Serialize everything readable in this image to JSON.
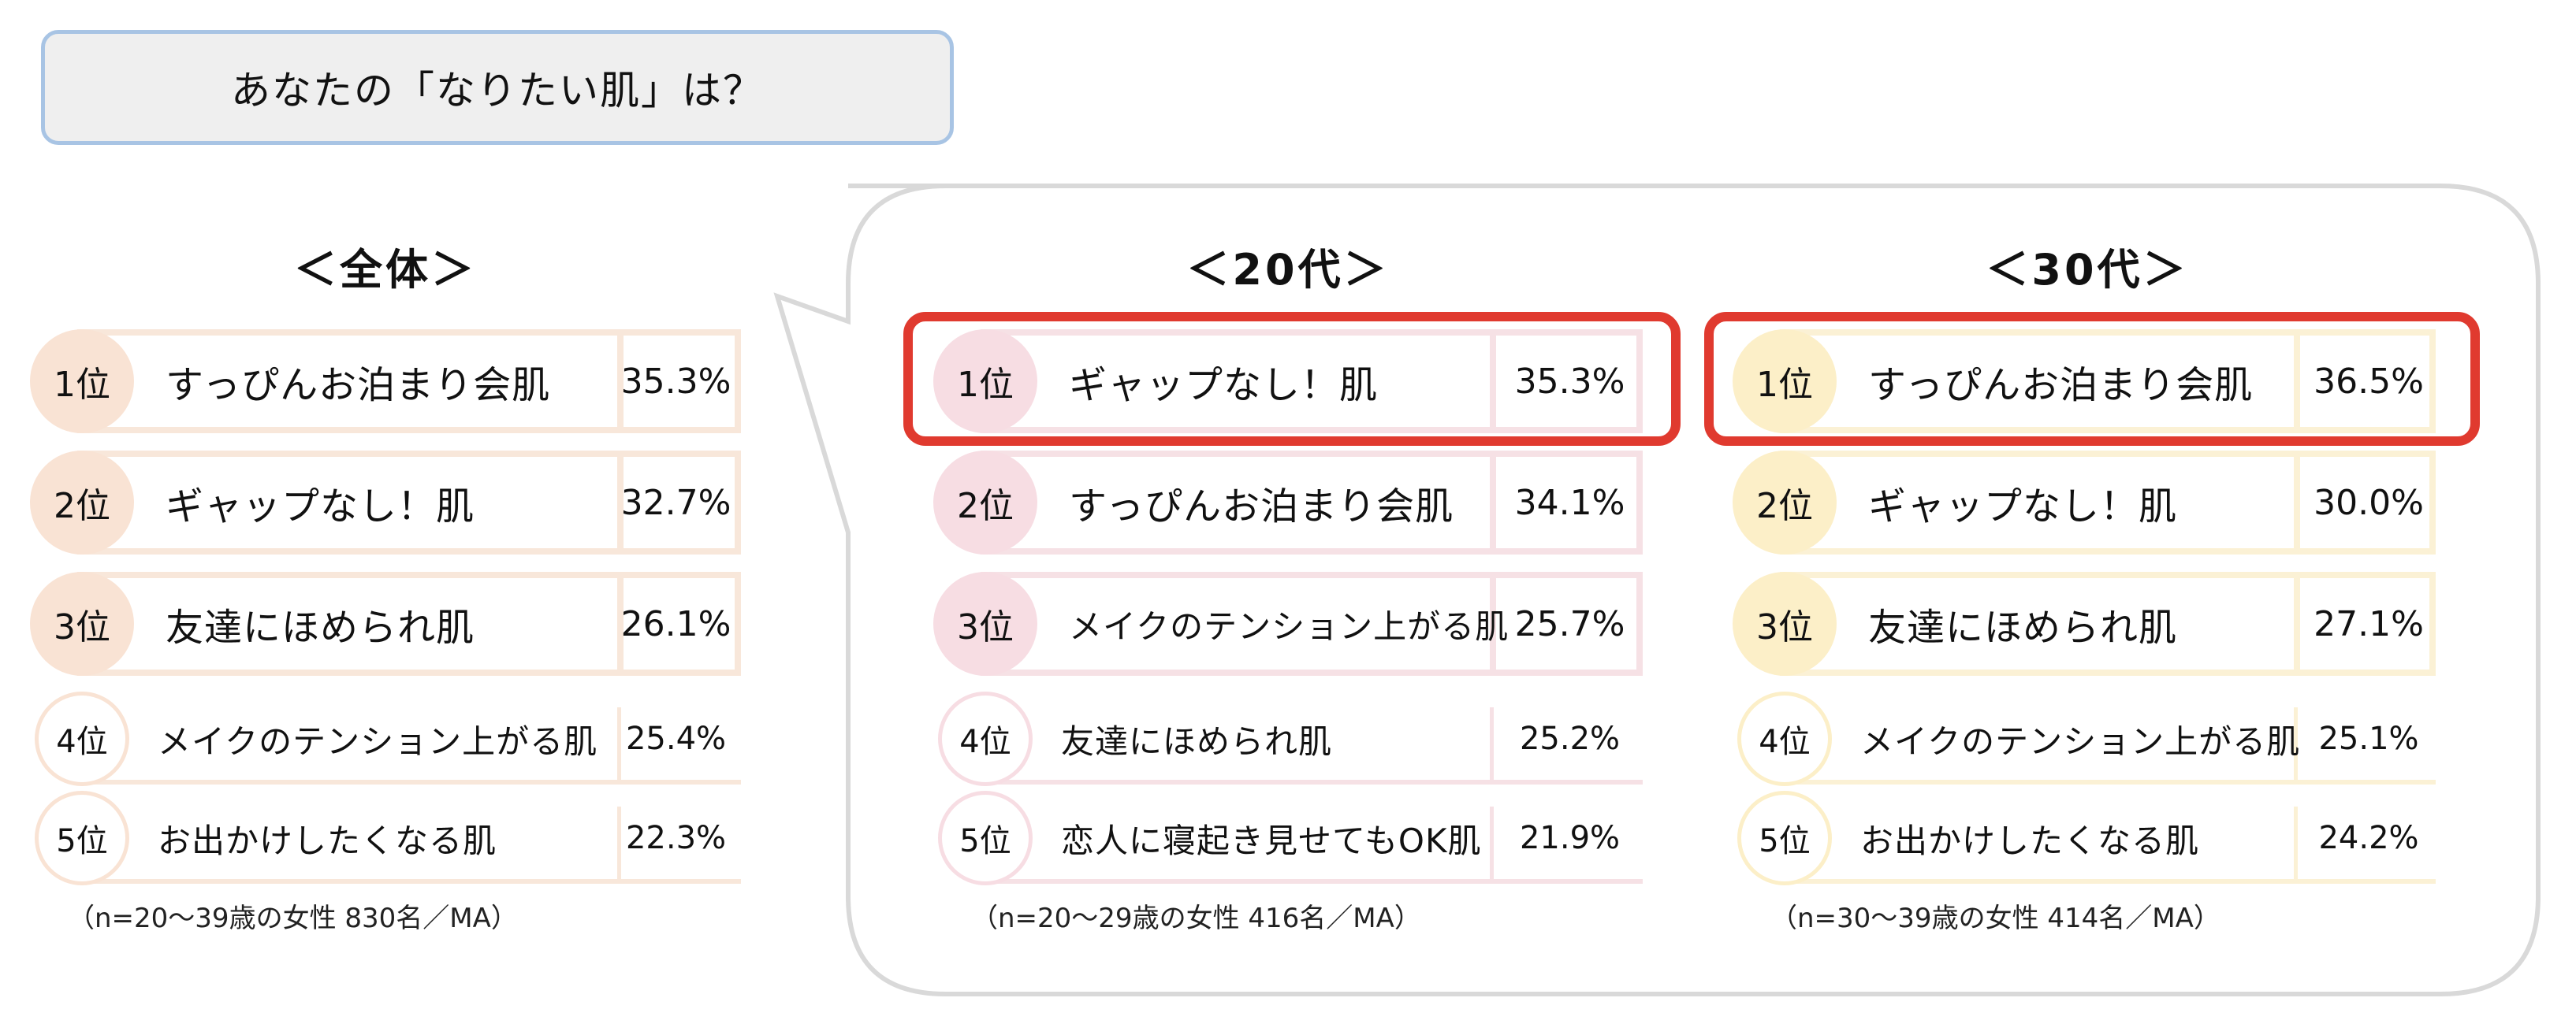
{
  "title": "あなたの「なりたい肌」は？",
  "chart_data": [
    {
      "type": "table",
      "title": "＜全体＞",
      "rows": [
        {
          "rank": "1位",
          "label": "すっぴんお泊まり会肌",
          "value": 35.3,
          "display": "35.3%"
        },
        {
          "rank": "2位",
          "label": "ギャップなし！肌",
          "value": 32.7,
          "display": "32.7%"
        },
        {
          "rank": "3位",
          "label": "友達にほめられ肌",
          "value": 26.1,
          "display": "26.1%"
        },
        {
          "rank": "4位",
          "label": "メイクのテンション上がる肌",
          "value": 25.4,
          "display": "25.4%"
        },
        {
          "rank": "5位",
          "label": "お出かけしたくなる肌",
          "value": 22.3,
          "display": "22.3%"
        }
      ],
      "note": "（n=20～39歳の女性 830名／MA）",
      "colors": {
        "circle": "#f9e3d4",
        "bar": "#f8e7da"
      }
    },
    {
      "type": "table",
      "title": "＜20代＞",
      "rows": [
        {
          "rank": "1位",
          "label": "ギャップなし！肌",
          "value": 35.3,
          "display": "35.3%"
        },
        {
          "rank": "2位",
          "label": "すっぴんお泊まり会肌",
          "value": 34.1,
          "display": "34.1%"
        },
        {
          "rank": "3位",
          "label": "メイクのテンション上がる肌",
          "value": 25.7,
          "display": "25.7%"
        },
        {
          "rank": "4位",
          "label": "友達にほめられ肌",
          "value": 25.2,
          "display": "25.2%"
        },
        {
          "rank": "5位",
          "label": "恋人に寝起き見せてもOK肌",
          "value": 21.9,
          "display": "21.9%"
        }
      ],
      "note": "（n=20～29歳の女性 416名／MA）",
      "colors": {
        "circle": "#f7dde3",
        "bar": "#f6e1e5"
      }
    },
    {
      "type": "table",
      "title": "＜30代＞",
      "rows": [
        {
          "rank": "1位",
          "label": "すっぴんお泊まり会肌",
          "value": 36.5,
          "display": "36.5%"
        },
        {
          "rank": "2位",
          "label": "ギャップなし！肌",
          "value": 30.0,
          "display": "30.0%"
        },
        {
          "rank": "3位",
          "label": "友達にほめられ肌",
          "value": 27.1,
          "display": "27.1%"
        },
        {
          "rank": "4位",
          "label": "メイクのテンション上がる肌",
          "value": 25.1,
          "display": "25.1%"
        },
        {
          "rank": "5位",
          "label": "お出かけしたくなる肌",
          "value": 24.2,
          "display": "24.2%"
        }
      ],
      "note": "（n=30～39歳の女性 414名／MA）",
      "colors": {
        "circle": "#fcefc8",
        "bar": "#fbf1d5"
      }
    }
  ],
  "highlight_color": "#e03a2f",
  "bubble_color": "#d9d9d9"
}
